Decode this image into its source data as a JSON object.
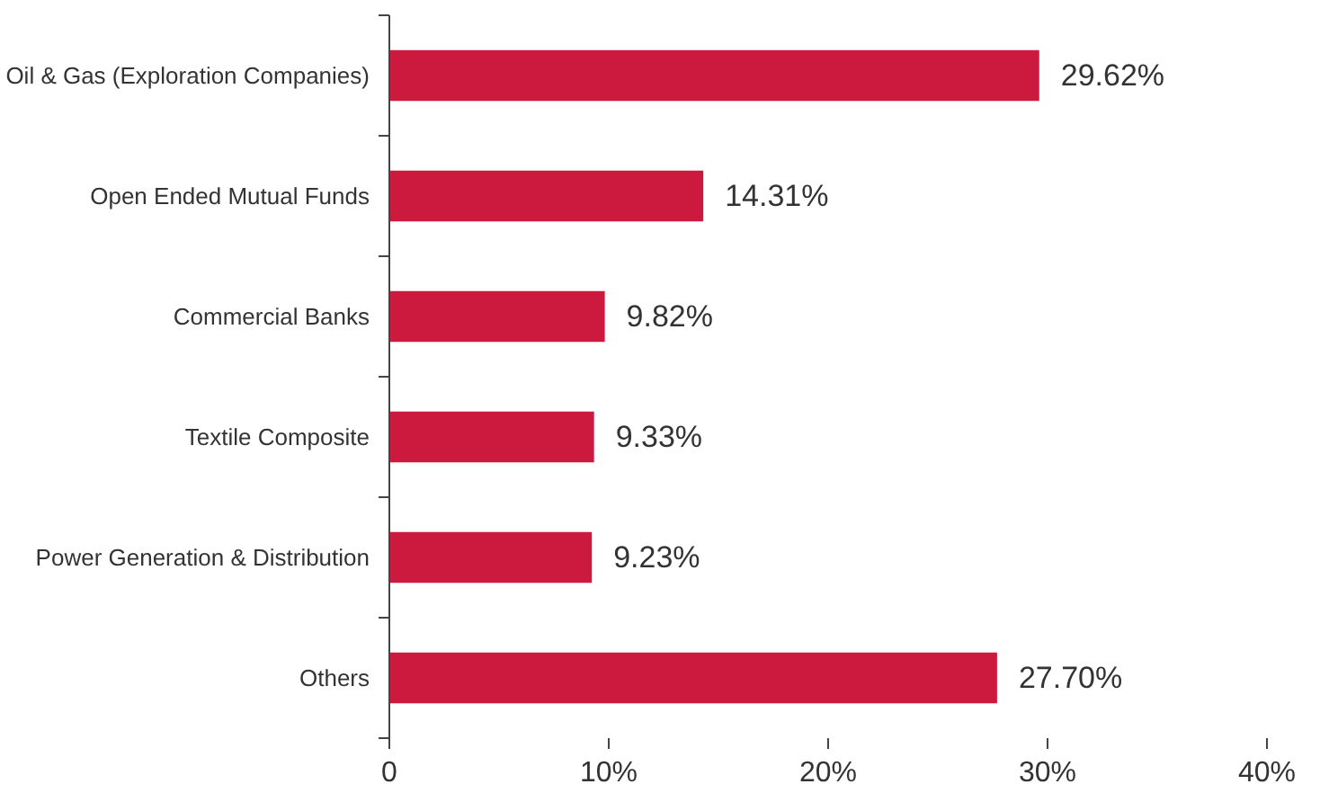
{
  "chart_data": {
    "type": "bar",
    "orientation": "horizontal",
    "categories": [
      "Oil & Gas (Exploration Companies)",
      "Open Ended Mutual Funds",
      "Commercial Banks",
      "Textile Composite",
      "Power Generation & Distribution",
      "Others"
    ],
    "values": [
      29.62,
      14.31,
      9.82,
      9.33,
      9.23,
      27.7
    ],
    "value_labels": [
      "29.62%",
      "14.31%",
      "9.82%",
      "9.33%",
      "9.23%",
      "27.70%"
    ],
    "color": "#cc1a3f",
    "xlim": [
      0,
      40
    ],
    "xticks": [
      0,
      {
        "value": 10,
        "label": "10%"
      },
      {
        "value": 20,
        "label": "20%"
      },
      {
        "value": 30,
        "label": "30%"
      },
      {
        "value": 40,
        "label": "40%"
      }
    ],
    "grid": false
  }
}
